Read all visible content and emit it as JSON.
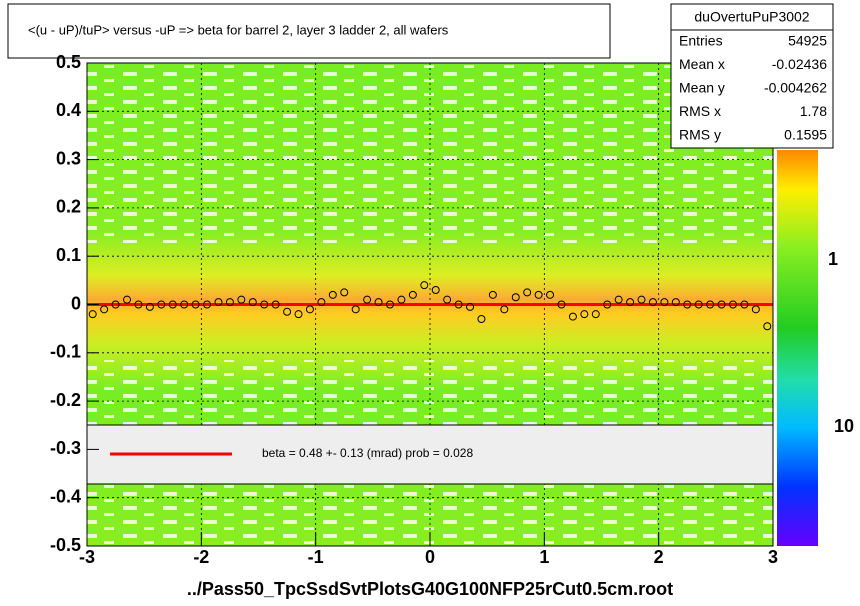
{
  "chart_data": {
    "type": "scatter",
    "title": "<(u - uP)/tuP>  versus  -uP => beta for barrel 2, layer 3 ladder 2, all wafers",
    "xlabel": "../Pass50_TpcSsdSvtPlotsG40G100NFP25rCut0.5cm.root",
    "xlim": [
      -3,
      3
    ],
    "xticks": [
      -3,
      -2,
      -1,
      0,
      1,
      2,
      3
    ],
    "ylim": [
      -0.5,
      0.5
    ],
    "yticks": [
      -0.5,
      -0.4,
      -0.3,
      -0.2,
      -0.1,
      0,
      0.1,
      0.2,
      0.3,
      0.4,
      0.5
    ],
    "grid": true,
    "series": [
      {
        "color": "#000000",
        "x": [
          -2.95,
          -2.85,
          -2.75,
          -2.65,
          -2.55,
          -2.45,
          -2.35,
          -2.25,
          -2.15,
          -2.05,
          -1.95,
          -1.85,
          -1.75,
          -1.65,
          -1.55,
          -1.45,
          -1.35,
          -1.25,
          -1.15,
          -1.05,
          -0.95,
          -0.85,
          -0.75,
          -0.65,
          -0.55,
          -0.45,
          -0.35,
          -0.25,
          -0.15,
          -0.05,
          0.05,
          0.15,
          0.25,
          0.35,
          0.45,
          0.55,
          0.65,
          0.75,
          0.85,
          0.95,
          1.05,
          1.15,
          1.25,
          1.35,
          1.45,
          1.55,
          1.65,
          1.75,
          1.85,
          1.95,
          2.05,
          2.15,
          2.25,
          2.35,
          2.45,
          2.55,
          2.65,
          2.75,
          2.85,
          2.95
        ],
        "values": [
          -0.02,
          -0.01,
          0,
          0.01,
          0,
          -0.005,
          0,
          0,
          0,
          0,
          0,
          0.005,
          0.005,
          0.01,
          0.005,
          0,
          0,
          -0.015,
          -0.02,
          -0.01,
          0.005,
          0.02,
          0.025,
          -0.01,
          0.01,
          0.005,
          0,
          0.01,
          0.02,
          0.04,
          0.03,
          0.01,
          0,
          -0.005,
          -0.03,
          0.02,
          -0.01,
          0.015,
          0.025,
          0.02,
          0.02,
          0,
          -0.025,
          -0.02,
          -0.02,
          0,
          0.01,
          0.005,
          0.01,
          0.005,
          0.005,
          0.005,
          0,
          0,
          0,
          0,
          0,
          0,
          -0.01,
          -0.045
        ]
      }
    ],
    "fit": {
      "color": "#ff0000",
      "x": [
        -3,
        3
      ],
      "values": [
        0,
        0
      ]
    },
    "legend_text": "beta =    0.48 +-  0.13 (mrad) prob = 0.028",
    "palette_labels": [
      "1",
      "10"
    ],
    "stats": {
      "name": "duOvertuPuP3002",
      "rows": [
        [
          "Entries",
          "54925"
        ],
        [
          "Mean x",
          "-0.02436"
        ],
        [
          "Mean y",
          "-0.004262"
        ],
        [
          "RMS x",
          "1.78"
        ],
        [
          "RMS y",
          "0.1595"
        ]
      ]
    }
  }
}
